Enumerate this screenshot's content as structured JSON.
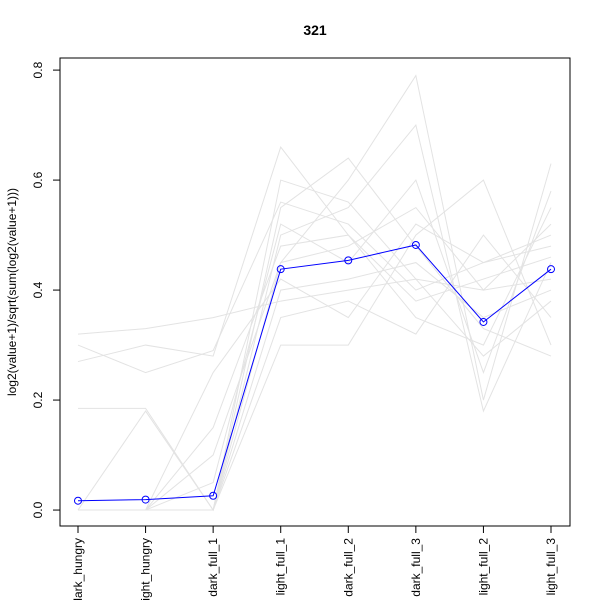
{
  "chart_data": {
    "type": "line",
    "title": "321",
    "y_label": "log2(value+1)/sqrt(sum(log2(value+1)))",
    "categories": [
      "dark_hungry",
      "light_hungry",
      "dark_full_1",
      "light_full_1",
      "dark_full_2",
      "dark_full_3",
      "light_full_2",
      "light_full_3"
    ],
    "ylim": [
      -0.029,
      0.822
    ],
    "yticks": [
      {
        "value": 0,
        "label": "0.0"
      },
      0.2,
      0.4,
      0.6,
      0.8
    ],
    "series": [
      {
        "color": "#e3e3e3",
        "values": [
          0.32,
          0.33,
          0.35,
          0.38,
          0.4,
          0.42,
          0.4,
          0.42
        ]
      },
      {
        "color": "#e3e3e3",
        "values": [
          0.3,
          0.25,
          0.29,
          0.56,
          0.52,
          0.4,
          0.45,
          0.48
        ]
      },
      {
        "color": "#e3e3e3",
        "values": [
          0.27,
          0.3,
          0.28,
          0.66,
          0.5,
          0.35,
          0.3,
          0.55
        ]
      },
      {
        "color": "#e3e3e3",
        "values": [
          0.185,
          0.185,
          0,
          0.45,
          0.6,
          0.79,
          0.2,
          0.63
        ]
      },
      {
        "color": "#e3e3e3",
        "values": [
          0,
          0,
          0,
          0.5,
          0.55,
          0.7,
          0.18,
          0.45
        ]
      },
      {
        "color": "#e3e3e3",
        "values": [
          0,
          0,
          0.1,
          0.45,
          0.48,
          0.55,
          0.4,
          0.52
        ]
      },
      {
        "color": "#e3e3e3",
        "values": [
          0,
          0,
          0,
          0.4,
          0.42,
          0.45,
          0.35,
          0.4
        ]
      },
      {
        "color": "#e3e3e3",
        "values": [
          0,
          0.18,
          0,
          0.3,
          0.3,
          0.5,
          0.6,
          0.3
        ]
      },
      {
        "color": "#e3e3e3",
        "values": [
          0,
          0,
          0.05,
          0.52,
          0.45,
          0.6,
          0.25,
          0.58
        ]
      },
      {
        "color": "#e3e3e3",
        "values": [
          0,
          0,
          0,
          0.35,
          0.38,
          0.32,
          0.5,
          0.35
        ]
      },
      {
        "color": "#e3e3e3",
        "values": [
          0,
          0,
          0.15,
          0.48,
          0.5,
          0.38,
          0.42,
          0.46
        ]
      },
      {
        "color": "#e3e3e3",
        "values": [
          0,
          0,
          0,
          0.55,
          0.64,
          0.48,
          0.33,
          0.28
        ]
      },
      {
        "color": "#e3e3e3",
        "values": [
          0,
          0,
          0.25,
          0.42,
          0.35,
          0.52,
          0.45,
          0.5
        ]
      },
      {
        "color": "#e3e3e3",
        "values": [
          0,
          0,
          0,
          0.6,
          0.56,
          0.42,
          0.28,
          0.38
        ]
      },
      {
        "color": "#0000ff",
        "markers": true,
        "values": [
          0.017,
          0.019,
          0.026,
          0.438,
          0.454,
          0.482,
          0.342,
          0.438
        ]
      }
    ]
  }
}
